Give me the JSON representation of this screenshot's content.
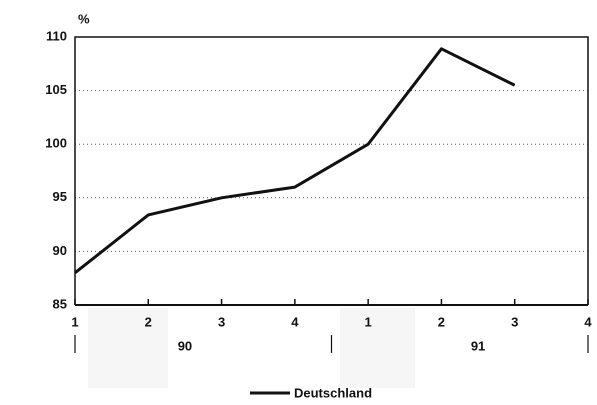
{
  "chart_data": {
    "type": "line",
    "y_unit": "%",
    "categories": [
      "1",
      "2",
      "3",
      "4",
      "1",
      "2",
      "3",
      "4"
    ],
    "groups": [
      "90",
      "91"
    ],
    "series": [
      {
        "name": "Deutschland",
        "color": "#111111",
        "values": [
          88,
          93.4,
          95,
          96,
          100,
          108.9,
          105.5,
          null
        ]
      }
    ],
    "ylim": [
      85,
      110
    ],
    "yticks": [
      85,
      90,
      95,
      100,
      105,
      110
    ],
    "grid": true
  }
}
